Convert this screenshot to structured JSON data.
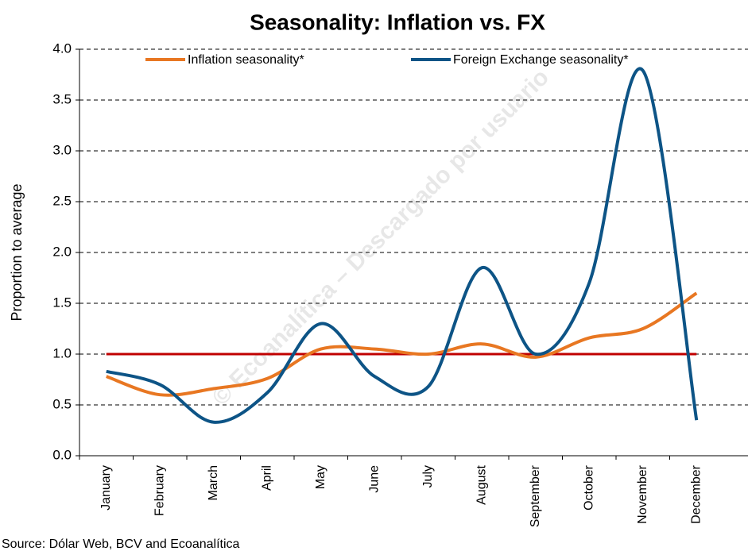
{
  "chart_data": {
    "type": "line",
    "title": "Seasonality: Inflation vs. FX",
    "y_label": "Proportion to average",
    "source": "Source: Dólar Web, BCV and Ecoanalítica",
    "watermark": "© Ecoanalítica – Descargado por usuario",
    "categories": [
      "January",
      "February",
      "March",
      "April",
      "May",
      "June",
      "July",
      "August",
      "September",
      "October",
      "November",
      "December"
    ],
    "series": [
      {
        "name": "Inflation seasonality*",
        "color": "#e87722",
        "values": [
          0.78,
          0.6,
          0.66,
          0.76,
          1.05,
          1.05,
          1.0,
          1.1,
          0.97,
          1.16,
          1.25,
          1.6
        ]
      },
      {
        "name": "Foreign Exchange seasonality*",
        "color": "#0d5486",
        "values": [
          0.83,
          0.7,
          0.33,
          0.62,
          1.3,
          0.78,
          0.68,
          1.85,
          1.0,
          1.7,
          3.79,
          0.35
        ]
      }
    ],
    "reference_line": {
      "value": 1,
      "color": "#c00000"
    },
    "ylim": [
      0,
      4
    ],
    "yticks": [
      {
        "value": 0,
        "label": "0.0"
      },
      {
        "value": 0.5,
        "label": "0.5"
      },
      {
        "value": 1,
        "label": "1.0"
      },
      {
        "value": 1.5,
        "label": "1.5"
      },
      {
        "value": 2,
        "label": "2.0"
      },
      {
        "value": 2.5,
        "label": "2.5"
      },
      {
        "value": 3,
        "label": "3.0"
      },
      {
        "value": 3.5,
        "label": "3.5"
      },
      {
        "value": 4,
        "label": "4.0"
      }
    ],
    "grid": true,
    "legend": "top"
  }
}
